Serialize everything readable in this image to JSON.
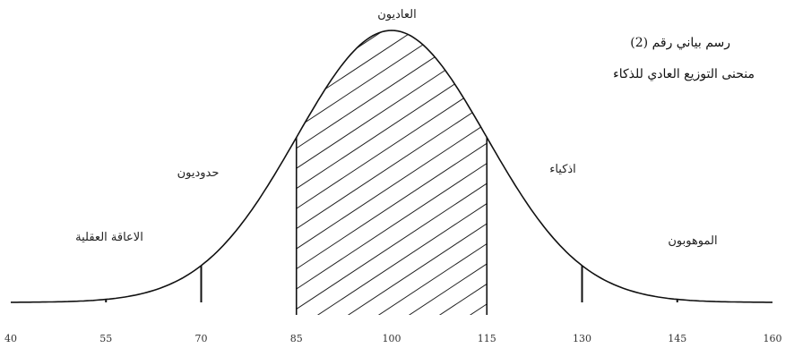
{
  "chart_data": {
    "type": "area",
    "title": "رسم بياني رقم (2)",
    "subtitle": "منحنى التوزيع العادي للذكاء",
    "x_ticks": [
      "40",
      "55",
      "70",
      "85",
      "100",
      "115",
      "130",
      "145",
      "160"
    ],
    "xlim": [
      40,
      160
    ],
    "mean": 100,
    "sd": 15,
    "shaded_range": [
      85,
      115
    ],
    "divider_lines": [
      55,
      70,
      85,
      115,
      130,
      145
    ],
    "regions": [
      {
        "label": "الاعاقة العقلية",
        "x": 55
      },
      {
        "label": "حدوديون",
        "x": 77
      },
      {
        "label": "العاديون",
        "x": 100
      },
      {
        "label": "اذكياء",
        "x": 122
      },
      {
        "label": "الموهوبون",
        "x": 137
      }
    ],
    "grid": false,
    "legend": "none"
  }
}
